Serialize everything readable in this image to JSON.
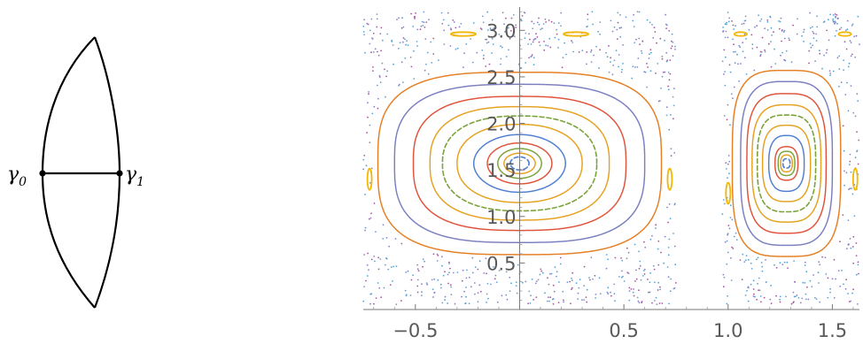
{
  "diagram": {
    "label_left_base": "γ",
    "label_left_sub": "0",
    "label_right_base": "γ",
    "label_right_sub": "1"
  },
  "chart_data": {
    "type": "scatter",
    "title": "",
    "xlabel": "",
    "ylabel": "",
    "xlim": [
      -0.75,
      1.63
    ],
    "ylim": [
      0.0,
      3.25
    ],
    "x_ticks": [
      -0.5,
      0.5,
      1.0,
      1.5
    ],
    "x_tick_labels": [
      "−0.5",
      "0.5",
      "1.0",
      "1.5"
    ],
    "y_ticks": [
      0.5,
      1.0,
      1.5,
      2.0,
      2.5,
      3.0
    ],
    "y_tick_labels": [
      "0.5",
      "1.0",
      "1.5",
      "2.0",
      "2.5",
      "3.0"
    ],
    "grid": false,
    "legend": "none",
    "panels": [
      {
        "x_range": [
          -0.75,
          0.75
        ],
        "center": [
          0.0,
          1.57
        ],
        "closed_curves": [
          {
            "color": "#e67e22",
            "dash": false,
            "half_width": 0.68,
            "half_height": 0.98,
            "shape": 3.2
          },
          {
            "color": "#7b7fc0",
            "dash": false,
            "half_width": 0.6,
            "half_height": 0.85,
            "shape": 3.0
          },
          {
            "color": "#e0523a",
            "dash": false,
            "half_width": 0.51,
            "half_height": 0.72,
            "shape": 2.8
          },
          {
            "color": "#e5a11f",
            "dash": false,
            "half_width": 0.43,
            "half_height": 0.61,
            "shape": 2.6
          },
          {
            "color": "#7aa33a",
            "dash": true,
            "half_width": 0.37,
            "half_height": 0.51,
            "shape": 2.4
          },
          {
            "color": "#e5a11f",
            "dash": false,
            "half_width": 0.3,
            "half_height": 0.42,
            "shape": 2.2
          },
          {
            "color": "#4f7fd0",
            "dash": false,
            "half_width": 0.22,
            "half_height": 0.31,
            "shape": 2.0
          },
          {
            "color": "#e0523a",
            "dash": false,
            "half_width": 0.155,
            "half_height": 0.22,
            "shape": 2.0
          },
          {
            "color": "#7aa33a",
            "dash": false,
            "half_width": 0.105,
            "half_height": 0.16,
            "shape": 2.0
          },
          {
            "color": "#e5a11f",
            "dash": false,
            "half_width": 0.075,
            "half_height": 0.11,
            "shape": 2.0
          },
          {
            "color": "#4f7fd0",
            "dash": true,
            "half_width": 0.045,
            "half_height": 0.07,
            "shape": 2.0
          }
        ],
        "islands": [
          {
            "x": -0.27,
            "y": 2.96,
            "width": 0.12,
            "color": "#f2b705"
          },
          {
            "x": 0.27,
            "y": 2.96,
            "width": 0.12,
            "color": "#f2b705"
          },
          {
            "x": -0.72,
            "y": 1.4,
            "width": 0.03,
            "color": "#f2b705"
          },
          {
            "x": 0.72,
            "y": 1.4,
            "width": 0.03,
            "color": "#f2b705"
          }
        ]
      },
      {
        "x_range": [
          0.97,
          1.63
        ],
        "center": [
          1.28,
          1.57
        ],
        "closed_curves": [
          {
            "color": "#e67e22",
            "dash": false,
            "half_width": 0.26,
            "half_height": 1.0,
            "shape": 3.5
          },
          {
            "color": "#7b7fc0",
            "dash": false,
            "half_width": 0.22,
            "half_height": 0.88,
            "shape": 3.3
          },
          {
            "color": "#e0523a",
            "dash": false,
            "half_width": 0.19,
            "half_height": 0.75,
            "shape": 3.2
          },
          {
            "color": "#e5a11f",
            "dash": false,
            "half_width": 0.165,
            "half_height": 0.63,
            "shape": 3.0
          },
          {
            "color": "#7aa33a",
            "dash": true,
            "half_width": 0.14,
            "half_height": 0.52,
            "shape": 3.0
          },
          {
            "color": "#e5a11f",
            "dash": false,
            "half_width": 0.115,
            "half_height": 0.41,
            "shape": 2.8
          },
          {
            "color": "#4f7fd0",
            "dash": false,
            "half_width": 0.085,
            "half_height": 0.3,
            "shape": 2.6
          },
          {
            "color": "#e0523a",
            "dash": false,
            "half_width": 0.055,
            "half_height": 0.18,
            "shape": 2.6
          },
          {
            "color": "#7aa33a",
            "dash": false,
            "half_width": 0.04,
            "half_height": 0.13,
            "shape": 2.6
          },
          {
            "color": "#e5a11f",
            "dash": false,
            "half_width": 0.028,
            "half_height": 0.09,
            "shape": 2.6
          },
          {
            "color": "#4f7fd0",
            "dash": true,
            "half_width": 0.017,
            "half_height": 0.05,
            "shape": 2.6
          }
        ],
        "islands": [
          {
            "x": 1.06,
            "y": 2.96,
            "width": 0.06,
            "color": "#f2b705"
          },
          {
            "x": 1.56,
            "y": 2.96,
            "width": 0.06,
            "color": "#f2b705"
          },
          {
            "x": 1.0,
            "y": 1.25,
            "width": 0.02,
            "color": "#f2b705"
          },
          {
            "x": 1.61,
            "y": 1.4,
            "width": 0.02,
            "color": "#f2b705"
          }
        ]
      }
    ],
    "chaotic_point_colors": [
      "#4fa3d6",
      "#a8559e",
      "#8c7fc9",
      "#6b9fd1"
    ]
  }
}
